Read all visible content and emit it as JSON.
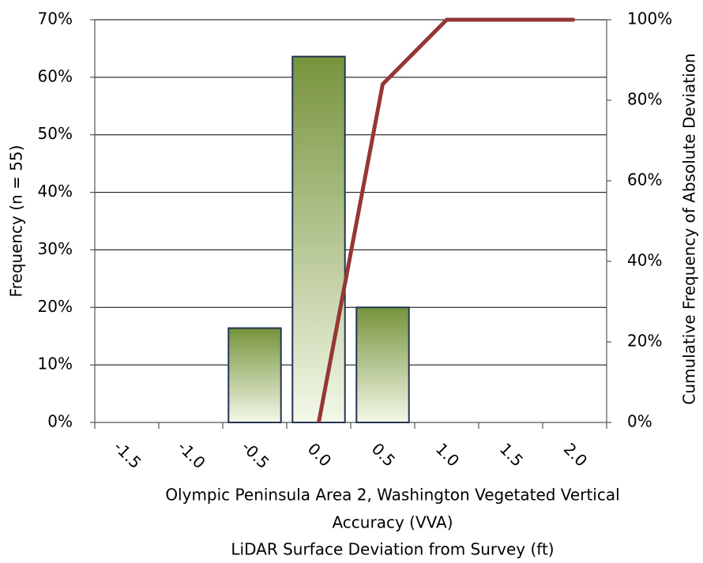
{
  "chart_data": {
    "type": "bar",
    "categories": [
      "-1.5",
      "-1.0",
      "-0.5",
      "0.0",
      "0.5",
      "1.0",
      "1.5",
      "2.0"
    ],
    "series": [
      {
        "type": "bar",
        "color": "#77933c",
        "values": [
          null,
          null,
          16.4,
          63.6,
          20.0,
          null,
          null,
          null
        ]
      },
      {
        "type": "line",
        "axis": "y2",
        "color": "#953735",
        "values": [
          null,
          null,
          null,
          0,
          84,
          100,
          100,
          100
        ]
      }
    ],
    "ylabel": "Frequency (n = 55)",
    "y2label": "Cumulative Frequency of Absolute Deviation",
    "xlabel": [
      "Olympic Peninsula Area 2, Washington Vegetated Vertical",
      "Accuracy (VVA)",
      "LiDAR Surface Deviation from Survey (ft)"
    ],
    "ylim": [
      0,
      70
    ],
    "yticks": [
      {
        "value": 0,
        "label": "0%"
      },
      {
        "value": 10,
        "label": "10%"
      },
      {
        "value": 20,
        "label": "20%"
      },
      {
        "value": 30,
        "label": "30%"
      },
      {
        "value": 40,
        "label": "40%"
      },
      {
        "value": 50,
        "label": "50%"
      },
      {
        "value": 60,
        "label": "60%"
      },
      {
        "value": 70,
        "label": "70%"
      }
    ],
    "y2lim": [
      0,
      100
    ],
    "y2ticks": [
      {
        "value": 0,
        "label": "0%"
      },
      {
        "value": 20,
        "label": "20%"
      },
      {
        "value": 40,
        "label": "40%"
      },
      {
        "value": 60,
        "label": "60%"
      },
      {
        "value": 80,
        "label": "80%"
      },
      {
        "value": 100,
        "label": "100%"
      }
    ],
    "grid": true
  }
}
